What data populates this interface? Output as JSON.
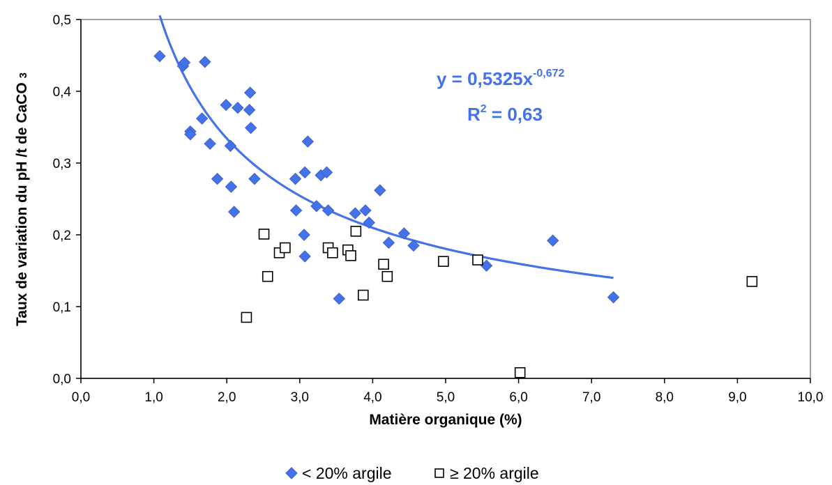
{
  "chart_data": {
    "type": "scatter",
    "xlabel": "Matière organique (%)",
    "ylabel": "Taux de variation du pH /t de CaCO",
    "ylabel_sub": "3",
    "xlim": [
      0,
      10
    ],
    "ylim": [
      0,
      0.5
    ],
    "x_ticks": [
      "0,0",
      "1,0",
      "2,0",
      "3,0",
      "4,0",
      "5,0",
      "6,0",
      "7,0",
      "8,0",
      "9,0",
      "10,0"
    ],
    "y_ticks": [
      "0,0",
      "0,1",
      "0,2",
      "0,3",
      "0,4",
      "0,5"
    ],
    "grid": false,
    "legend_position": "bottom",
    "series": [
      {
        "name": "< 20% argile",
        "marker": "diamond",
        "color": "#4472E8",
        "points": [
          [
            1.08,
            0.449
          ],
          [
            1.4,
            0.435
          ],
          [
            1.42,
            0.44
          ],
          [
            1.7,
            0.441
          ],
          [
            1.5,
            0.344
          ],
          [
            1.5,
            0.34
          ],
          [
            1.66,
            0.362
          ],
          [
            1.77,
            0.327
          ],
          [
            1.87,
            0.278
          ],
          [
            1.99,
            0.381
          ],
          [
            2.05,
            0.324
          ],
          [
            2.06,
            0.267
          ],
          [
            2.1,
            0.232
          ],
          [
            2.15,
            0.377
          ],
          [
            2.31,
            0.374
          ],
          [
            2.32,
            0.398
          ],
          [
            2.33,
            0.349
          ],
          [
            2.38,
            0.278
          ],
          [
            2.94,
            0.278
          ],
          [
            2.95,
            0.234
          ],
          [
            3.06,
            0.2
          ],
          [
            3.07,
            0.287
          ],
          [
            3.07,
            0.17
          ],
          [
            3.11,
            0.33
          ],
          [
            3.23,
            0.24
          ],
          [
            3.29,
            0.283
          ],
          [
            3.37,
            0.287
          ],
          [
            3.39,
            0.234
          ],
          [
            3.54,
            0.111
          ],
          [
            3.76,
            0.23
          ],
          [
            3.9,
            0.234
          ],
          [
            3.95,
            0.217
          ],
          [
            4.1,
            0.262
          ],
          [
            4.22,
            0.189
          ],
          [
            4.43,
            0.202
          ],
          [
            4.56,
            0.185
          ],
          [
            5.56,
            0.157
          ],
          [
            6.47,
            0.192
          ],
          [
            7.3,
            0.113
          ]
        ]
      },
      {
        "name": "≥ 20% argile",
        "marker": "square-open",
        "color": "#000000",
        "points": [
          [
            2.27,
            0.085
          ],
          [
            2.51,
            0.201
          ],
          [
            2.56,
            0.142
          ],
          [
            2.72,
            0.175
          ],
          [
            2.8,
            0.182
          ],
          [
            3.39,
            0.182
          ],
          [
            3.45,
            0.175
          ],
          [
            3.66,
            0.179
          ],
          [
            3.7,
            0.171
          ],
          [
            3.77,
            0.205
          ],
          [
            3.87,
            0.116
          ],
          [
            4.15,
            0.159
          ],
          [
            4.2,
            0.142
          ],
          [
            4.97,
            0.163
          ],
          [
            5.44,
            0.165
          ],
          [
            6.02,
            0.008
          ],
          [
            9.2,
            0.135
          ]
        ]
      }
    ],
    "trendline": {
      "type": "power",
      "a": 0.5325,
      "b": -0.672,
      "x_range": [
        1.08,
        7.3
      ],
      "color": "#4472E8"
    },
    "annotations": {
      "equation_prefix": "y = 0,5325x",
      "equation_exponent": "-0,672",
      "r2_prefix": "R",
      "r2_exponent": "2",
      "r2_suffix": " = 0,63",
      "color": "#4472E8"
    }
  },
  "legend": {
    "items": [
      {
        "label": "< 20% argile",
        "icon": "blue-diamond-icon"
      },
      {
        "label": "≥ 20% argile",
        "icon": "open-square-icon"
      }
    ]
  }
}
